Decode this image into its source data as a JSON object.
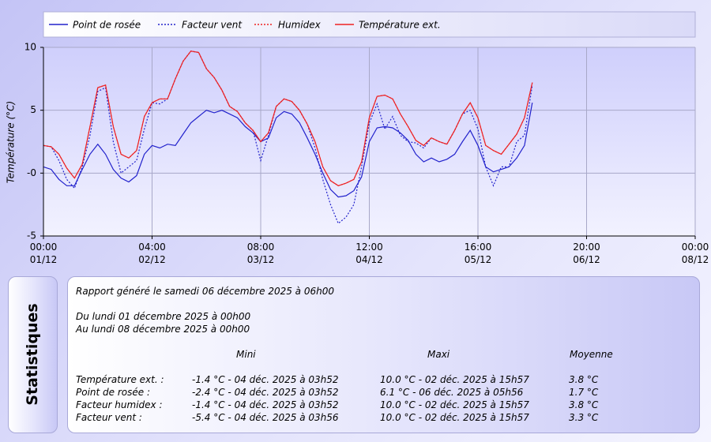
{
  "chart_data": {
    "type": "line",
    "ylabel": "Température (°C)",
    "xlim": [
      0,
      168
    ],
    "xticks": [
      {
        "value": 0,
        "label": "00:00 01/12"
      },
      {
        "value": 28,
        "label": "04:00 02/12"
      },
      {
        "value": 56,
        "label": "08:00 03/12"
      },
      {
        "value": 84,
        "label": "12:00 04/12"
      },
      {
        "value": 112,
        "label": "16:00 05/12"
      },
      {
        "value": 140,
        "label": "20:00 06/12"
      },
      {
        "value": 168,
        "label": "00:00 08/12"
      }
    ],
    "ylim": [
      -5,
      10
    ],
    "yticks": [
      -5,
      {
        "value": 0,
        "label": "-0"
      },
      5,
      10
    ],
    "grid": true,
    "legend": "top",
    "x": [
      0,
      2,
      4,
      6,
      8,
      10,
      12,
      14,
      16,
      18,
      20,
      22,
      24,
      26,
      28,
      30,
      32,
      34,
      36,
      38,
      40,
      42,
      44,
      46,
      48,
      50,
      52,
      54,
      56,
      58,
      60,
      62,
      64,
      66,
      68,
      70,
      72,
      74,
      76,
      78,
      80,
      82,
      84,
      86,
      88,
      90,
      92,
      94,
      96,
      98,
      100,
      102,
      104,
      106,
      108,
      110,
      112,
      114,
      116,
      118,
      120,
      122,
      124,
      126
    ],
    "series": [
      {
        "name": "Point de rosée",
        "color": "#2222cc",
        "dashed": false,
        "values": [
          0.5,
          0.3,
          -0.5,
          -1.0,
          -1.0,
          0.3,
          1.5,
          2.3,
          1.5,
          0.3,
          -0.4,
          -0.7,
          -0.2,
          1.5,
          2.2,
          2.0,
          2.3,
          2.2,
          3.1,
          4.0,
          4.5,
          5.0,
          4.8,
          5.0,
          4.7,
          4.4,
          3.7,
          3.2,
          2.5,
          2.8,
          4.4,
          4.9,
          4.7,
          4.0,
          2.8,
          1.5,
          0,
          -1.3,
          -1.9,
          -1.8,
          -1.4,
          -0.3,
          2.5,
          3.6,
          3.7,
          3.6,
          3.2,
          2.6,
          1.5,
          0.9,
          1.2,
          0.9,
          1.1,
          1.5,
          2.5,
          3.4,
          2.2,
          0.5,
          0.1,
          0.3,
          0.5,
          1.2,
          2.2,
          5.6
        ]
      },
      {
        "name": "Facteur vent",
        "color": "#2222cc",
        "dashed": true,
        "values": [
          2.2,
          2.1,
          1.0,
          -0.5,
          -1.2,
          0.5,
          3.0,
          6.5,
          6.8,
          2.5,
          0.0,
          0.5,
          1.0,
          3.5,
          5.6,
          5.5,
          5.9,
          7.5,
          8.9,
          9.7,
          9.6,
          8.3,
          7.6,
          6.6,
          5.3,
          4.9,
          4.0,
          3.4,
          1.0,
          3.0,
          5.3,
          5.9,
          5.7,
          5.0,
          3.9,
          2.0,
          -0.5,
          -2.5,
          -4.0,
          -3.5,
          -2.5,
          0.5,
          4.0,
          5.5,
          3.5,
          4.5,
          3.0,
          2.5,
          2.4,
          2.0,
          2.8,
          2.5,
          2.3,
          3.4,
          4.7,
          5.0,
          3.5,
          0.5,
          -1.0,
          0.5,
          0.5,
          2.5,
          3.0,
          7.0
        ]
      },
      {
        "name": "Humidex",
        "color": "#ee2222",
        "dashed": true,
        "values": [
          2.2,
          2.1,
          1.5,
          0.4,
          -0.4,
          0.7,
          3.7,
          6.8,
          7.0,
          3.7,
          1.5,
          1.2,
          1.8,
          4.5,
          5.6,
          5.9,
          5.9,
          7.5,
          8.9,
          9.7,
          9.6,
          8.3,
          7.6,
          6.6,
          5.3,
          4.9,
          4.0,
          3.4,
          2.5,
          3.2,
          5.3,
          5.9,
          5.7,
          5.0,
          3.9,
          2.5,
          0.5,
          -0.6,
          -1.0,
          -0.8,
          -0.5,
          0.9,
          4.4,
          6.1,
          6.2,
          5.9,
          4.7,
          3.7,
          2.6,
          2.2,
          2.8,
          2.5,
          2.3,
          3.4,
          4.7,
          5.6,
          4.4,
          2.2,
          1.8,
          1.5,
          2.3,
          3.1,
          4.4,
          7.2
        ]
      },
      {
        "name": "Température ext.",
        "color": "#ee2222",
        "dashed": false,
        "values": [
          2.2,
          2.1,
          1.5,
          0.4,
          -0.4,
          0.7,
          3.7,
          6.8,
          7.0,
          3.7,
          1.5,
          1.2,
          1.8,
          4.5,
          5.6,
          5.9,
          5.9,
          7.5,
          8.9,
          9.7,
          9.6,
          8.3,
          7.6,
          6.6,
          5.3,
          4.9,
          4.0,
          3.4,
          2.5,
          3.2,
          5.3,
          5.9,
          5.7,
          5.0,
          3.9,
          2.5,
          0.5,
          -0.6,
          -1.0,
          -0.8,
          -0.5,
          0.9,
          4.4,
          6.1,
          6.2,
          5.9,
          4.7,
          3.7,
          2.6,
          2.2,
          2.8,
          2.5,
          2.3,
          3.4,
          4.7,
          5.6,
          4.4,
          2.2,
          1.8,
          1.5,
          2.3,
          3.1,
          4.4,
          7.2
        ]
      }
    ]
  },
  "stats": {
    "title": "Statistiques",
    "generated": "Rapport généré le samedi 06 décembre 2025 à 06h00",
    "from": "Du lundi 01 décembre 2025 à 00h00",
    "to": "Au lundi 08 décembre 2025 à 00h00",
    "columns": [
      "Mini",
      "Maxi",
      "Moyenne"
    ],
    "rows": [
      [
        "Température ext. :",
        "-1.4 °C - 04 déc. 2025 à 03h52",
        "10.0 °C - 02 déc. 2025 à 15h57",
        "3.8 °C"
      ],
      [
        "Point de rosée :",
        "-2.4 °C - 04 déc. 2025 à 03h52",
        "6.1 °C - 06 déc. 2025 à 05h56",
        "1.7 °C"
      ],
      [
        "Facteur humidex :",
        "-1.4 °C - 04 déc. 2025 à 03h52",
        "10.0 °C - 02 déc. 2025 à 15h57",
        "3.8 °C"
      ],
      [
        "Facteur vent :",
        "-5.4 °C - 04 déc. 2025 à 03h56",
        "10.0 °C - 02 déc. 2025 à 15h57",
        "3.3 °C"
      ]
    ]
  }
}
